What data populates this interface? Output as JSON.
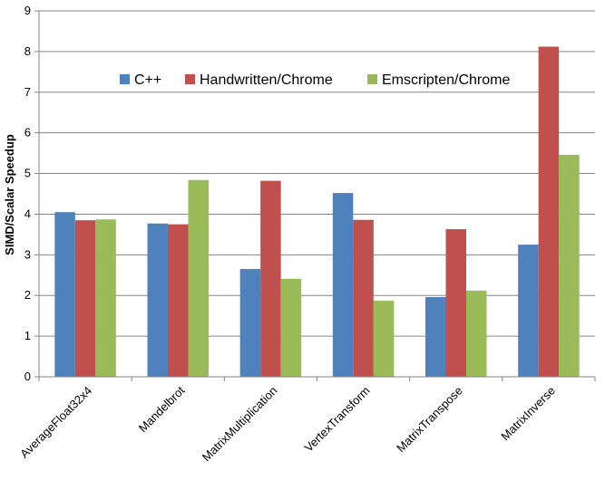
{
  "chart_data": {
    "type": "bar",
    "title": "",
    "xlabel": "",
    "ylabel": "SIMD/Scalar Speedup",
    "ylim": [
      0,
      9
    ],
    "yticks": [
      0,
      1,
      2,
      3,
      4,
      5,
      6,
      7,
      8,
      9
    ],
    "grid": true,
    "legend_position": "top",
    "categories": [
      "AverageFloat32x4",
      "Mandelbrot",
      "MatrixMultiplication",
      "VertexTransform",
      "MatrixTranspose",
      "MatrixInverse"
    ],
    "series": [
      {
        "name": "C++",
        "color": "#4F81BD",
        "values": [
          4.05,
          3.77,
          2.65,
          4.52,
          1.96,
          3.25
        ]
      },
      {
        "name": "Handwritten/Chrome",
        "color": "#C0504D",
        "values": [
          3.85,
          3.75,
          4.82,
          3.86,
          3.63,
          8.12
        ]
      },
      {
        "name": "Emscripten/Chrome",
        "color": "#9BBB59",
        "values": [
          3.87,
          4.84,
          2.41,
          1.87,
          2.12,
          5.46
        ]
      }
    ],
    "colors": {
      "gridline": "#868686",
      "axis": "#868686"
    }
  }
}
